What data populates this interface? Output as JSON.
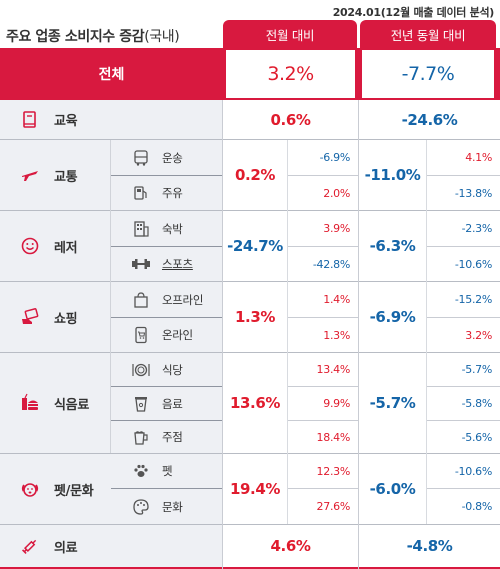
{
  "header": {
    "caption": "2024.01(12월 매출 데이터 분석)",
    "title": "주요 업종 소비지수 증감",
    "title_sub": "(국내)",
    "col_mom": "전월 대비",
    "col_yoy": "전년 동월 대비"
  },
  "total": {
    "label": "전체",
    "mom": "3.2%",
    "yoy": "-7.7%"
  },
  "education": {
    "label": "교육",
    "icon": "book-icon",
    "mom": "0.6%",
    "yoy": "-24.6%"
  },
  "transport": {
    "label": "교통",
    "icon": "airplane-icon",
    "mom": "0.2%",
    "yoy": "-11.0%",
    "subs": [
      {
        "label": "운송",
        "icon": "bus-icon",
        "mom": "-6.9%",
        "yoy": "4.1%"
      },
      {
        "label": "주유",
        "icon": "fuel-pump-icon",
        "mom": "2.0%",
        "yoy": "-13.8%"
      }
    ]
  },
  "leisure": {
    "label": "레저",
    "icon": "smile-icon",
    "mom": "-24.7%",
    "yoy": "-6.3%",
    "subs": [
      {
        "label": "숙박",
        "icon": "building-icon",
        "mom": "3.9%",
        "yoy": "-2.3%"
      },
      {
        "label": "스포츠",
        "icon": "dumbbell-icon",
        "mom": "-42.8%",
        "yoy": "-10.6%"
      }
    ]
  },
  "shopping": {
    "label": "쇼핑",
    "icon": "card-hand-icon",
    "mom": "1.3%",
    "yoy": "-6.9%",
    "subs": [
      {
        "label": "오프라인",
        "icon": "shopping-bag-icon",
        "mom": "1.4%",
        "yoy": "-15.2%"
      },
      {
        "label": "온라인",
        "icon": "mobile-cart-icon",
        "mom": "1.3%",
        "yoy": "3.2%"
      }
    ]
  },
  "food": {
    "label": "식음료",
    "icon": "burger-drink-icon",
    "mom": "13.6%",
    "yoy": "-5.7%",
    "subs": [
      {
        "label": "식당",
        "icon": "plate-icon",
        "mom": "13.4%",
        "yoy": "-5.7%"
      },
      {
        "label": "음료",
        "icon": "coffee-cup-icon",
        "mom": "9.9%",
        "yoy": "-5.8%"
      },
      {
        "label": "주점",
        "icon": "beer-icon",
        "mom": "18.4%",
        "yoy": "-5.6%"
      }
    ]
  },
  "pet": {
    "label": "펫/문화",
    "icon": "dog-icon",
    "mom": "19.4%",
    "yoy": "-6.0%",
    "subs": [
      {
        "label": "펫",
        "icon": "paw-icon",
        "mom": "12.3%",
        "yoy": "-10.6%"
      },
      {
        "label": "문화",
        "icon": "palette-icon",
        "mom": "27.6%",
        "yoy": "-0.8%"
      }
    ]
  },
  "medical": {
    "label": "의료",
    "icon": "syringe-icon",
    "mom": "4.6%",
    "yoy": "-4.8%"
  },
  "colors": {
    "accent": "#d8193f",
    "positive": "#e01b2d",
    "negative": "#1565a8",
    "row_bg": "#eef0f4"
  }
}
